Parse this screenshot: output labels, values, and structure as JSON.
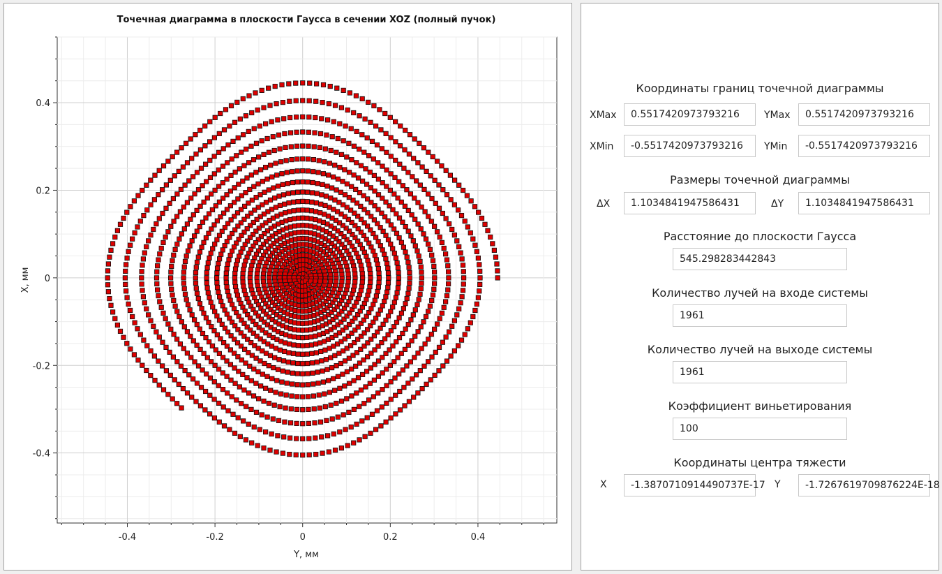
{
  "plot": {
    "title": "Точечная диаграмма в плоскости Гаусса в сечении XOZ (полный пучок)",
    "xlabel": "Y, мм",
    "ylabel": "X, мм",
    "marker_fill": "#dd0000",
    "marker_stroke": "#111111"
  },
  "chart_data": {
    "type": "scatter",
    "title": "Точечная диаграмма в плоскости Гаусса в сечении XOZ (полный пучок)",
    "xlabel": "Y, мм",
    "ylabel": "X, мм",
    "xlim": [
      -0.56,
      0.58
    ],
    "ylim": [
      -0.56,
      0.55
    ],
    "xticks": [
      -0.4,
      -0.2,
      0,
      0.2,
      0.4
    ],
    "yticks": [
      -0.4,
      -0.2,
      0,
      0.2,
      0.4
    ],
    "xtick_labels": [
      "-0.4",
      "-0.2",
      "0",
      "0.2",
      "0.4"
    ],
    "ytick_labels": [
      "-0.4",
      "-0.2",
      "0",
      "0.2",
      "0.4"
    ],
    "grid": true,
    "n_points": 1961,
    "extent_max": 0.5517420973793216,
    "distribution": "polar grid of rays (25 rings) with cubic radial aberration; pincushion pattern"
  },
  "info": {
    "bounds_title": "Координаты границ точечной диаграммы",
    "xmax_label": "XMax",
    "xmax_value": "0.5517420973793216",
    "ymax_label": "YMax",
    "ymax_value": "0.5517420973793216",
    "xmin_label": "XMin",
    "xmin_value": "-0.5517420973793216",
    "ymin_label": "YMin",
    "ymin_value": "-0.5517420973793216",
    "size_title": "Размеры точечной диаграммы",
    "dx_label": "ΔX",
    "dx_value": "1.1034841947586431",
    "dy_label": "ΔY",
    "dy_value": "1.1034841947586431",
    "distance_title": "Расстояние до плоскости Гаусса",
    "distance_value": "545.298283442843",
    "rays_in_title": "Количество лучей на входе системы",
    "rays_in_value": "1961",
    "rays_out_title": "Количество лучей на выходе системы",
    "rays_out_value": "1961",
    "vignetting_title": "Коэффициент виньетирования",
    "vignetting_value": "100",
    "centroid_title": "Координаты центра тяжести",
    "cx_label": "X",
    "cx_value": "-1.3870710914490737E-17",
    "cy_label": "Y",
    "cy_value": "-1.7267619709876224E-18"
  }
}
